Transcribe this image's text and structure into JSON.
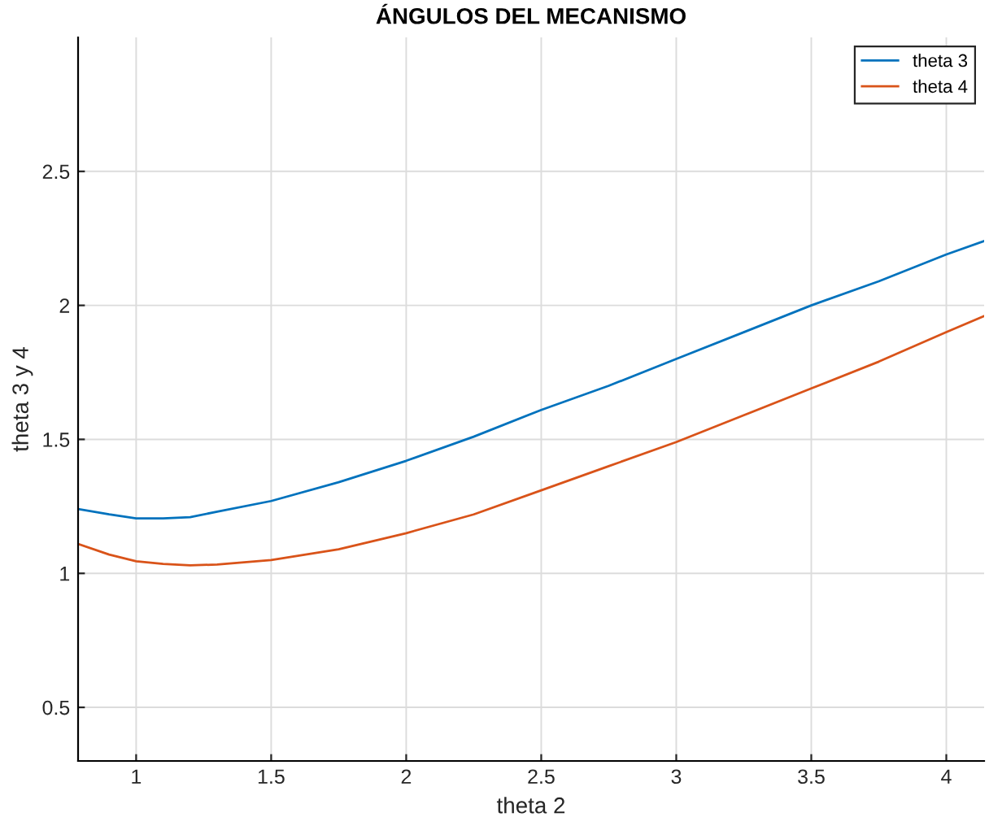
{
  "chart_data": {
    "type": "line",
    "title": "ÁNGULOS DEL MECANISMO",
    "xlabel": "theta 2",
    "ylabel": "theta 3 y 4",
    "x": [
      0.785,
      0.9,
      1.0,
      1.1,
      1.2,
      1.3,
      1.5,
      1.75,
      2.0,
      2.25,
      2.5,
      2.75,
      3.0,
      3.25,
      3.5,
      3.75,
      4.0,
      4.14
    ],
    "series": [
      {
        "name": "theta 3",
        "color": "#0072bd",
        "values": [
          1.24,
          1.22,
          1.205,
          1.205,
          1.21,
          1.23,
          1.27,
          1.34,
          1.42,
          1.51,
          1.61,
          1.7,
          1.8,
          1.9,
          2.0,
          2.09,
          2.19,
          2.24
        ]
      },
      {
        "name": "theta 4",
        "color": "#d95319",
        "values": [
          1.11,
          1.07,
          1.045,
          1.035,
          1.03,
          1.033,
          1.05,
          1.09,
          1.15,
          1.22,
          1.31,
          1.4,
          1.49,
          1.59,
          1.69,
          1.79,
          1.9,
          1.96
        ]
      }
    ],
    "xlim": [
      0.785,
      4.14
    ],
    "ylim": [
      0.3,
      3.0
    ],
    "xticks": [
      1,
      1.5,
      2,
      2.5,
      3,
      3.5,
      4
    ],
    "yticks": [
      0.5,
      1,
      1.5,
      2,
      2.5
    ],
    "grid": true,
    "legend": "top right",
    "marker": "none",
    "line_style": "solid"
  }
}
